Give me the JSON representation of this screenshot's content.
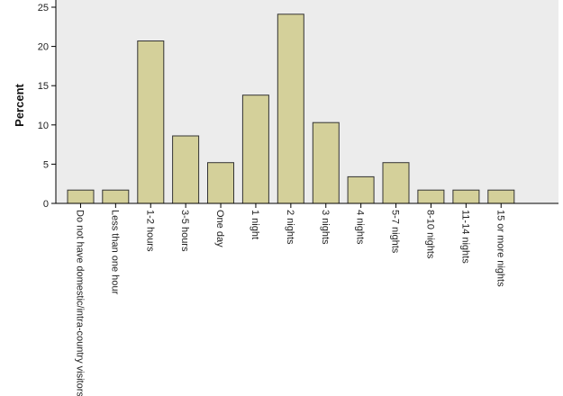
{
  "chart_data": {
    "type": "bar",
    "title": "",
    "xlabel": "",
    "ylabel": "Percent",
    "ylim": [
      0,
      25
    ],
    "yticks": [
      0,
      5,
      10,
      15,
      20,
      25
    ],
    "grid": false,
    "plot_background": "#ececec",
    "bar_color": "#d4d09a",
    "bar_edge_color": "#333333",
    "categories": [
      "Do not have domestic/intra-country visitors",
      "Less than one hour",
      "1-2 hours",
      "3-5 hours",
      "One day",
      "1 night",
      "2 nights",
      "3 nights",
      "4 nights",
      "5-7 nights",
      "8-10 nights",
      "11-14 nights",
      "15 or more nights"
    ],
    "values": [
      1.7,
      1.7,
      20.7,
      8.6,
      5.2,
      13.8,
      24.1,
      10.3,
      3.4,
      5.2,
      1.7,
      1.7,
      1.7
    ]
  }
}
